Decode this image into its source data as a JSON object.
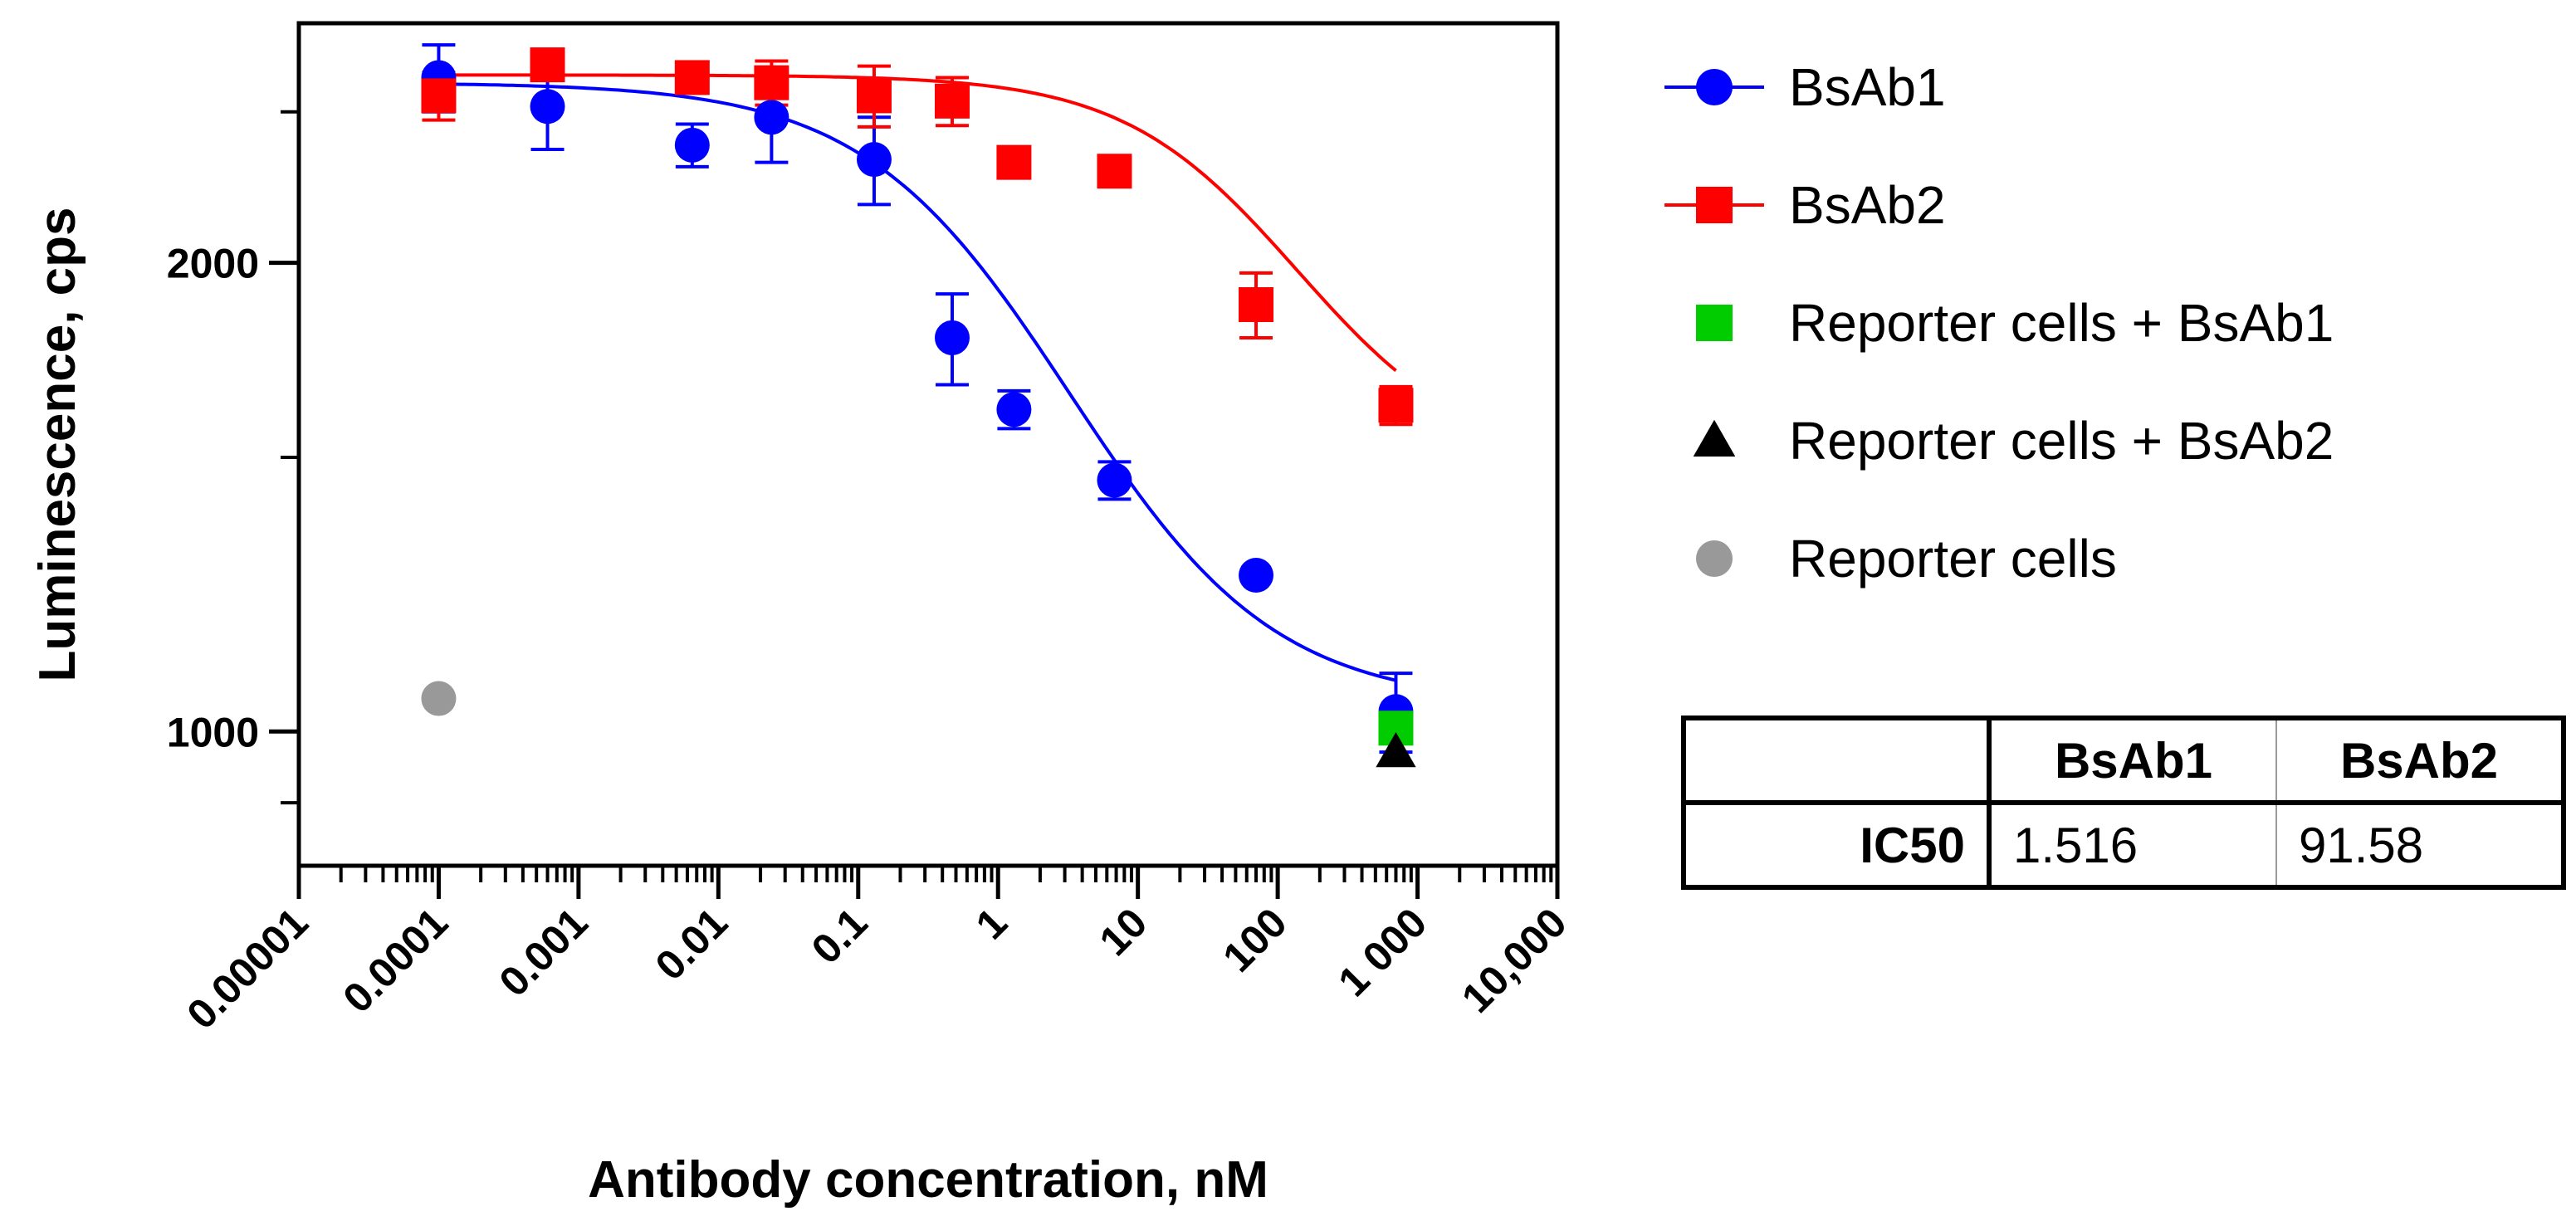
{
  "chart_data": {
    "type": "scatter",
    "title": "",
    "xlabel": "Antibody concentration, nM",
    "ylabel": "Luminescence, cps",
    "x_scale": "log",
    "y_scale": "log",
    "xlim": [
      1e-05,
      10000
    ],
    "ylim": [
      820,
      2850
    ],
    "x_ticks": [
      1e-05,
      0.0001,
      0.001,
      0.01,
      0.1,
      1,
      10,
      100,
      1000,
      10000
    ],
    "x_tick_labels": [
      "0.00001",
      "0.0001",
      "0.001",
      "0.01",
      "0.1",
      "1",
      "10",
      "100",
      "1 000",
      "10,000"
    ],
    "y_ticks": [
      1000,
      2000
    ],
    "y_tick_labels": [
      "1000",
      "2000"
    ],
    "grid": false,
    "legend_position": "right",
    "series": [
      {
        "name": "BsAb1",
        "color": "#0000ff",
        "marker": "circle",
        "fit_curve": true,
        "fit": {
          "top": 2610,
          "bottom": 1040,
          "ic50": 1.516,
          "hill": 0.6
        },
        "x": [
          0.0001,
          0.0006,
          0.0065,
          0.024,
          0.13,
          0.47,
          1.3,
          6.8,
          70,
          700
        ],
        "y": [
          2630,
          2520,
          2380,
          2480,
          2330,
          1790,
          1610,
          1450,
          1260,
          1030
        ],
        "error": [
          130,
          155,
          75,
          160,
          150,
          120,
          45,
          40,
          0,
          60
        ]
      },
      {
        "name": "BsAb2",
        "color": "#ff0000",
        "marker": "square",
        "fit_curve": true,
        "fit": {
          "top": 2640,
          "bottom": 1480,
          "ic50": 91.58,
          "hill": 0.7
        },
        "x": [
          0.0001,
          0.0006,
          0.0065,
          0.024,
          0.13,
          0.47,
          1.3,
          6.8,
          70,
          700
        ],
        "y": [
          2560,
          2680,
          2630,
          2610,
          2560,
          2540,
          2320,
          2290,
          1880,
          1620
        ],
        "error": [
          90,
          30,
          0,
          85,
          115,
          90,
          0,
          0,
          90,
          45
        ]
      },
      {
        "name": "Reporter cells + BsAb1",
        "color": "#00cc00",
        "marker": "square",
        "fit_curve": false,
        "x": [
          700
        ],
        "y": [
          1005
        ],
        "error": [
          0
        ]
      },
      {
        "name": "Reporter cells + BsAb2",
        "color": "#000000",
        "marker": "triangle",
        "fit_curve": false,
        "x": [
          700
        ],
        "y": [
          970
        ],
        "error": [
          0
        ]
      },
      {
        "name": "Reporter cells",
        "color": "#999999",
        "marker": "circle",
        "fit_curve": false,
        "x": [
          0.0001
        ],
        "y": [
          1050
        ],
        "error": [
          0
        ]
      }
    ]
  },
  "ic50_table": {
    "header": [
      "",
      "BsAb1",
      "BsAb2"
    ],
    "row_label": "IC50",
    "values": [
      "1.516",
      "91.58"
    ]
  }
}
